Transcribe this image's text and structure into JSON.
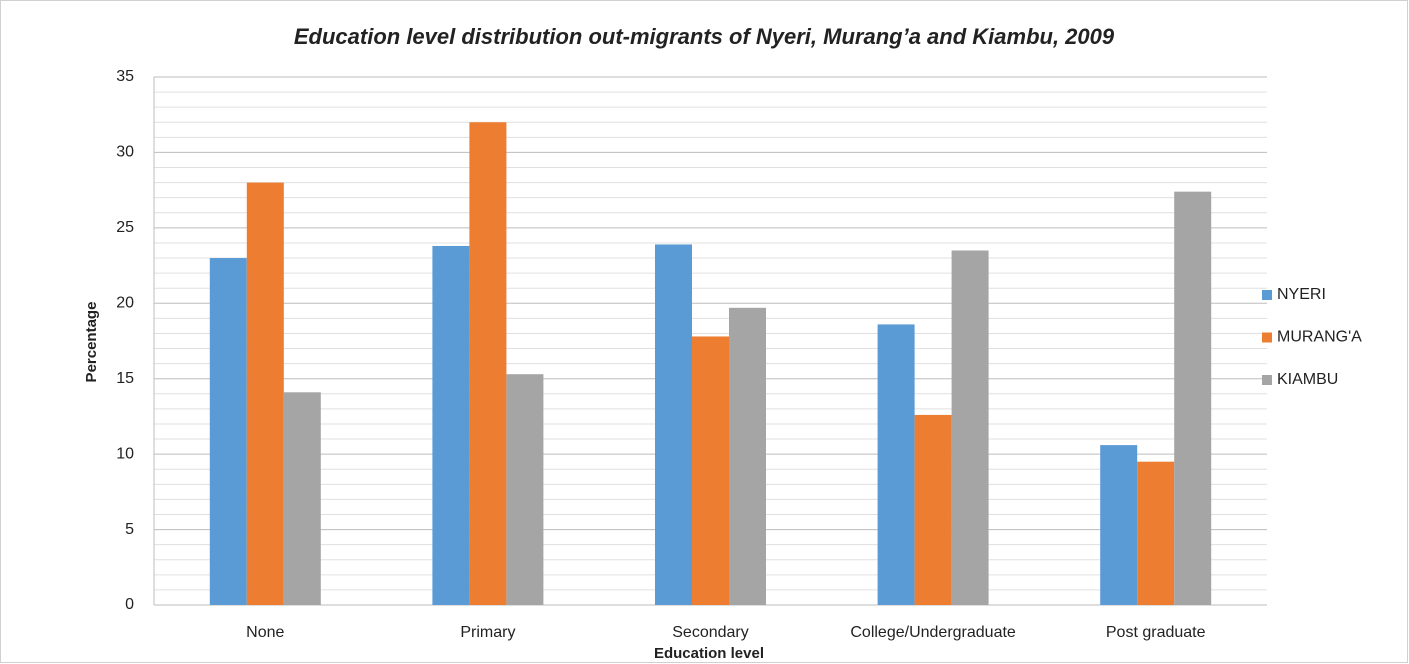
{
  "chart_data": {
    "type": "bar",
    "title": "Education level distribution  out-migrants of Nyeri, Murang’a and Kiambu, 2009",
    "x_label": "Education level",
    "y_label": "Percentage",
    "categories": [
      "None",
      "Primary",
      "Secondary",
      "College/Undergraduate",
      "Post graduate"
    ],
    "series": [
      {
        "name": "NYERI",
        "color": "#5b9bd5",
        "values": [
          23,
          23.8,
          23.9,
          18.6,
          10.6
        ]
      },
      {
        "name": "MURANG'A",
        "color": "#ed7d31",
        "values": [
          28,
          32,
          17.8,
          12.6,
          9.5
        ]
      },
      {
        "name": "KIAMBU",
        "color": "#a5a5a5",
        "values": [
          14.1,
          15.3,
          19.7,
          23.5,
          27.4
        ]
      }
    ],
    "ylim": [
      0,
      35
    ],
    "yticks": [
      0,
      5,
      10,
      15,
      20,
      25,
      30,
      35
    ],
    "grid": true,
    "minor_grid": true,
    "legend": "right"
  }
}
